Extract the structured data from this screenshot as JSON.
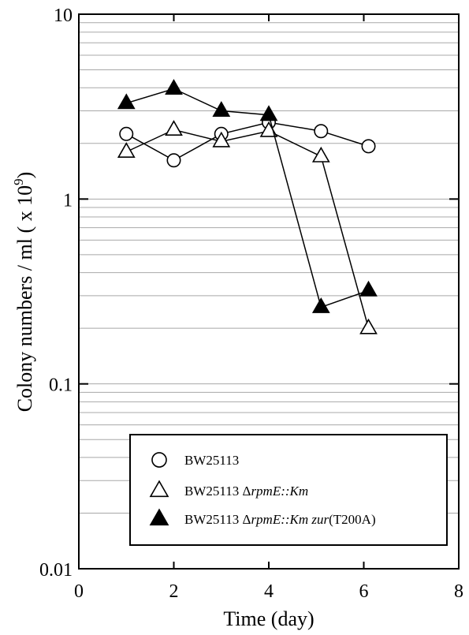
{
  "chart_data": {
    "type": "scatter",
    "title": "",
    "xlabel": "Time (day)",
    "ylabel_main": "Colony numbers / ml ( x 10",
    "ylabel_sup": "9",
    "ylabel_close": ")",
    "xlim": [
      0,
      8
    ],
    "ylim": [
      0.01,
      10
    ],
    "yscale": "log",
    "x_ticks": [
      0,
      2,
      4,
      6,
      8
    ],
    "y_ticks": [
      0.01,
      0.1,
      1,
      10
    ],
    "y_tick_labels": [
      "0.01",
      "0.1",
      "1",
      "10"
    ],
    "grid": "horizontal, minor log gridlines",
    "legend_position": "bottom-center",
    "series": [
      {
        "legend_parts": [
          {
            "text": "BW25113",
            "italic": false
          }
        ],
        "marker": "circle-open",
        "x": [
          1,
          2,
          3,
          4,
          5.1,
          6.1
        ],
        "y": [
          2.25,
          1.62,
          2.25,
          2.6,
          2.33,
          1.93
        ]
      },
      {
        "legend_parts": [
          {
            "text": "BW25113 Δ",
            "italic": false
          },
          {
            "text": "rpmE::Km",
            "italic": true
          }
        ],
        "marker": "triangle-open",
        "x": [
          1,
          2,
          3,
          4,
          5.1,
          6.1
        ],
        "y": [
          1.8,
          2.37,
          2.05,
          2.33,
          1.7,
          0.2
        ]
      },
      {
        "legend_parts": [
          {
            "text": "BW25113 Δ",
            "italic": false
          },
          {
            "text": "rpmE::Km zur",
            "italic": true
          },
          {
            "text": "(T200A)",
            "italic": false
          }
        ],
        "marker": "triangle-filled",
        "x": [
          1,
          2,
          3,
          4,
          5.1,
          6.1
        ],
        "y": [
          3.3,
          3.95,
          3.0,
          2.85,
          0.26,
          0.32
        ]
      }
    ]
  }
}
